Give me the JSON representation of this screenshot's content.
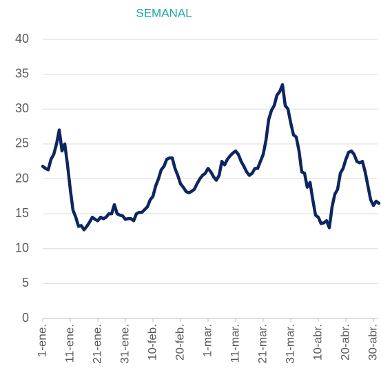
{
  "chart_data": {
    "type": "line",
    "title": "SEMANAL",
    "categories": [
      "1-ene.",
      null,
      null,
      null,
      null,
      null,
      null,
      null,
      null,
      null,
      "11-ene.",
      null,
      null,
      null,
      null,
      null,
      null,
      null,
      null,
      null,
      "21-ene.",
      null,
      null,
      null,
      null,
      null,
      null,
      null,
      null,
      null,
      "31-ene.",
      null,
      null,
      null,
      null,
      null,
      null,
      null,
      null,
      null,
      "10-feb.",
      null,
      null,
      null,
      null,
      null,
      null,
      null,
      null,
      null,
      "20-feb.",
      null,
      null,
      null,
      null,
      null,
      null,
      null,
      null,
      null,
      "1-mar.",
      null,
      null,
      null,
      null,
      null,
      null,
      null,
      null,
      null,
      "11-mar.",
      null,
      null,
      null,
      null,
      null,
      null,
      null,
      null,
      null,
      "21-mar.",
      null,
      null,
      null,
      null,
      null,
      null,
      null,
      null,
      null,
      "31-mar.",
      null,
      null,
      null,
      null,
      null,
      null,
      null,
      null,
      null,
      "10-abr.",
      null,
      null,
      null,
      null,
      null,
      null,
      null,
      null,
      null,
      "20-abr.",
      null,
      null,
      null,
      null,
      null,
      null,
      null,
      null,
      null,
      "30-abr.",
      null,
      null
    ],
    "series": [
      {
        "name": "SEMANAL",
        "color": "#0d2660",
        "values": [
          21.8,
          21.5,
          21.3,
          22.8,
          23.5,
          25,
          27,
          24,
          25,
          22,
          18.5,
          15.5,
          14.5,
          13.2,
          13.3,
          12.7,
          13.2,
          13.8,
          14.5,
          14.2,
          14,
          14.5,
          14.3,
          14.5,
          15,
          15,
          16.3,
          15,
          14.8,
          14.7,
          14.2,
          14.3,
          14.3,
          14,
          15,
          15.2,
          15.2,
          15.6,
          16,
          17,
          17.5,
          19,
          20,
          21.3,
          21.8,
          22.8,
          23,
          23,
          21.5,
          20.5,
          19.3,
          18.8,
          18.2,
          18,
          18.2,
          18.5,
          19.3,
          20,
          20.5,
          20.8,
          21.5,
          21,
          20.3,
          19.8,
          20.5,
          22.5,
          22,
          22.8,
          23.3,
          23.7,
          24,
          23.5,
          22.5,
          21.8,
          21,
          20.5,
          20.8,
          21.5,
          21.5,
          22.5,
          23.5,
          25.5,
          28.5,
          29.8,
          30.5,
          32,
          32.5,
          33.5,
          30.5,
          30,
          28,
          26.3,
          26,
          24,
          21,
          20.8,
          18.8,
          19.5,
          17,
          14.8,
          14.5,
          13.6,
          13.7,
          14,
          13,
          16,
          17.8,
          18.5,
          20.8,
          21.5,
          22.8,
          23.8,
          24,
          23.5,
          22.5,
          22.3,
          22.5,
          21,
          19,
          17,
          16.2,
          16.8,
          16.5
        ]
      }
    ],
    "ylim": [
      0,
      40
    ],
    "yticks": [
      0,
      5,
      10,
      15,
      20,
      25,
      30,
      35,
      40
    ],
    "grid": true
  }
}
